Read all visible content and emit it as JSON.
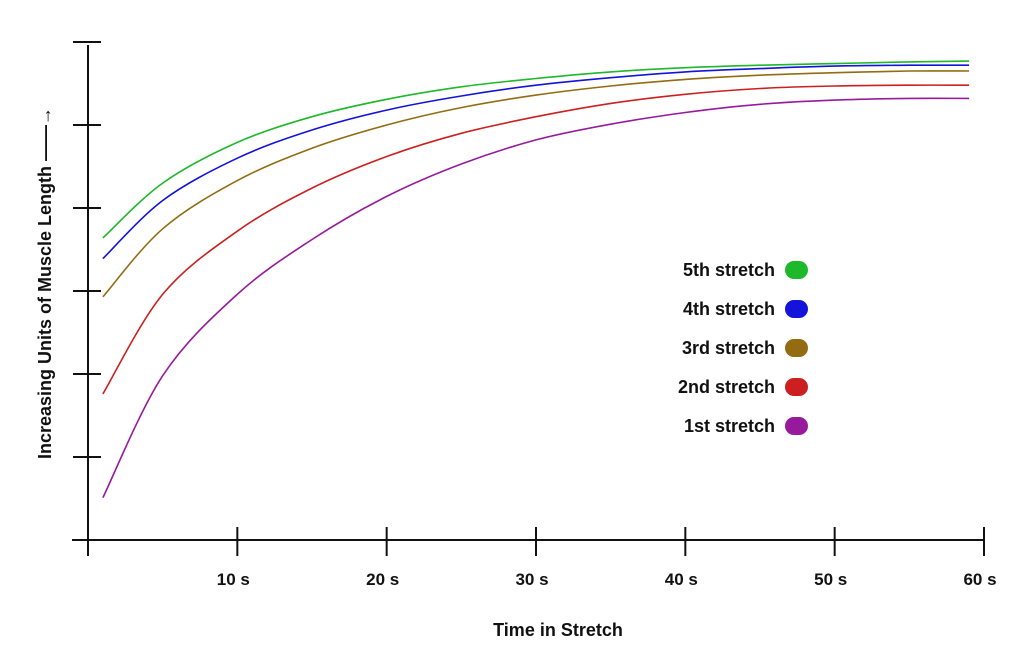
{
  "chart_data": {
    "type": "line",
    "xlabel": "Time in Stretch",
    "ylabel": "Increasing Units of Muscle Length ——→",
    "x_ticks": [
      {
        "value": 10,
        "label": "10 s"
      },
      {
        "value": 20,
        "label": "20 s"
      },
      {
        "value": 30,
        "label": "30 s"
      },
      {
        "value": 40,
        "label": "40 s"
      },
      {
        "value": 50,
        "label": "50 s"
      },
      {
        "value": 60,
        "label": "60 s"
      }
    ],
    "y_ticks": [
      1,
      2,
      3,
      4,
      5,
      6
    ],
    "xlim": [
      0,
      60
    ],
    "ylim": [
      0,
      6
    ],
    "grid": false,
    "legend_position": "right",
    "series": [
      {
        "name": "5th stretch",
        "color": "#1eb82b",
        "x": [
          1,
          5,
          10,
          15,
          20,
          25,
          30,
          35,
          40,
          45,
          50,
          55,
          59
        ],
        "y": [
          3.64,
          4.3,
          4.79,
          5.1,
          5.31,
          5.46,
          5.56,
          5.64,
          5.69,
          5.72,
          5.74,
          5.76,
          5.77
        ]
      },
      {
        "name": "4th stretch",
        "color": "#1313d9",
        "x": [
          1,
          5,
          10,
          15,
          20,
          25,
          30,
          35,
          40,
          45,
          50,
          55,
          59
        ],
        "y": [
          3.39,
          4.09,
          4.6,
          4.94,
          5.18,
          5.35,
          5.48,
          5.57,
          5.64,
          5.68,
          5.71,
          5.72,
          5.72
        ]
      },
      {
        "name": "3rd stretch",
        "color": "#936c12",
        "x": [
          1,
          5,
          10,
          15,
          20,
          25,
          30,
          35,
          40,
          45,
          50,
          55,
          59
        ],
        "y": [
          2.93,
          3.75,
          4.33,
          4.72,
          5.0,
          5.21,
          5.36,
          5.47,
          5.55,
          5.6,
          5.63,
          5.65,
          5.65
        ]
      },
      {
        "name": "2nd stretch",
        "color": "#cc2020",
        "x": [
          1,
          5,
          10,
          15,
          20,
          25,
          30,
          35,
          40,
          45,
          50,
          55,
          59
        ],
        "y": [
          1.76,
          2.96,
          3.72,
          4.24,
          4.62,
          4.9,
          5.1,
          5.26,
          5.37,
          5.44,
          5.47,
          5.48,
          5.48
        ]
      },
      {
        "name": "1st stretch",
        "color": "#981a9c",
        "x": [
          1,
          5,
          10,
          15,
          20,
          25,
          30,
          35,
          40,
          45,
          50,
          55,
          59
        ],
        "y": [
          0.51,
          1.98,
          2.96,
          3.62,
          4.14,
          4.53,
          4.82,
          5.01,
          5.15,
          5.25,
          5.3,
          5.32,
          5.32
        ]
      }
    ]
  }
}
